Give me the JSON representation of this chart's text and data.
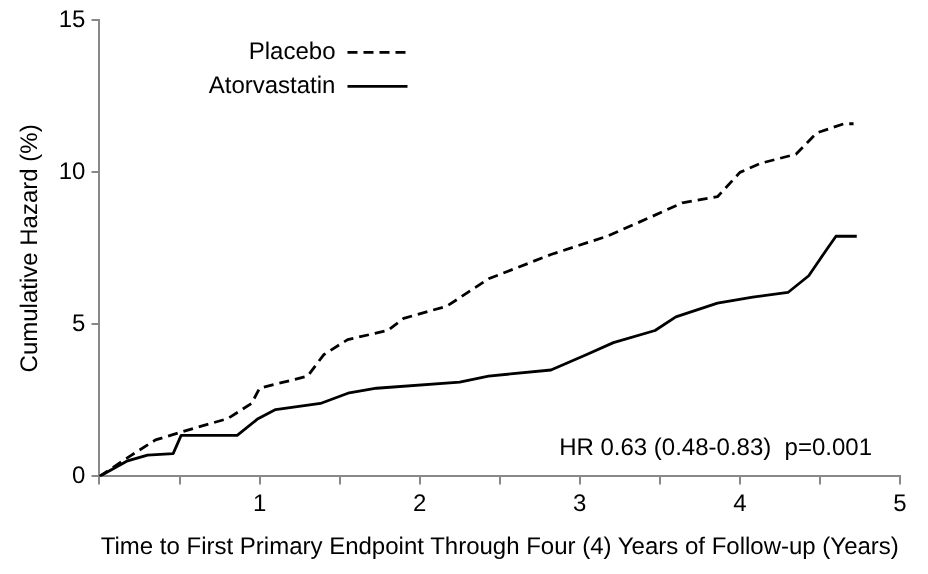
{
  "chart_data": {
    "type": "line",
    "xlabel": "Time to First Primary Endpoint Through Four (4) Years of Follow-up (Years)",
    "ylabel": "Cumulative Hazard (%)",
    "xlim": [
      0,
      5
    ],
    "xticks": [
      {
        "value": 0,
        "label": null
      },
      {
        "value": 0.5,
        "label": null
      },
      1,
      {
        "value": 1.5,
        "label": null
      },
      2,
      {
        "value": 2.5,
        "label": null
      },
      3,
      {
        "value": 3.5,
        "label": null
      },
      4,
      {
        "value": 4.5,
        "label": null
      },
      5
    ],
    "ylim": [
      0,
      15
    ],
    "yticks": [
      0,
      5,
      10,
      15
    ],
    "grid": false,
    "legend": "top left",
    "marker": "none",
    "annotations": [
      "HR 0.63 (0.48-0.83)  p=0.001"
    ],
    "series": [
      {
        "name": "Placebo",
        "color": "#000000",
        "line_style": "dashed",
        "x": [
          0,
          0.2,
          0.35,
          0.6,
          0.8,
          0.95,
          1.0,
          1.15,
          1.3,
          1.4,
          1.55,
          1.8,
          1.9,
          2.17,
          2.43,
          2.82,
          3.17,
          3.43,
          3.64,
          3.86,
          4.0,
          4.13,
          4.35,
          4.48,
          4.65,
          4.71
        ],
        "values": [
          0,
          0.7,
          1.2,
          1.6,
          1.9,
          2.4,
          2.9,
          3.1,
          3.3,
          4.0,
          4.5,
          4.8,
          5.2,
          5.6,
          6.5,
          7.3,
          7.9,
          8.5,
          9.0,
          9.2,
          10.0,
          10.3,
          10.6,
          11.3,
          11.6,
          11.6
        ]
      },
      {
        "name": "Atorvastatin",
        "color": "#000000",
        "line_style": "solid",
        "x": [
          0,
          0.17,
          0.3,
          0.46,
          0.51,
          0.86,
          0.99,
          1.1,
          1.38,
          1.56,
          1.73,
          2.25,
          2.43,
          2.82,
          3.04,
          3.21,
          3.47,
          3.6,
          3.86,
          4.08,
          4.3,
          4.43,
          4.54,
          4.6,
          4.73
        ],
        "values": [
          0,
          0.5,
          0.7,
          0.75,
          1.35,
          1.35,
          1.9,
          2.2,
          2.4,
          2.75,
          2.9,
          3.1,
          3.3,
          3.5,
          4.0,
          4.4,
          4.8,
          5.25,
          5.7,
          5.9,
          6.05,
          6.6,
          7.45,
          7.9,
          7.9
        ]
      }
    ]
  }
}
